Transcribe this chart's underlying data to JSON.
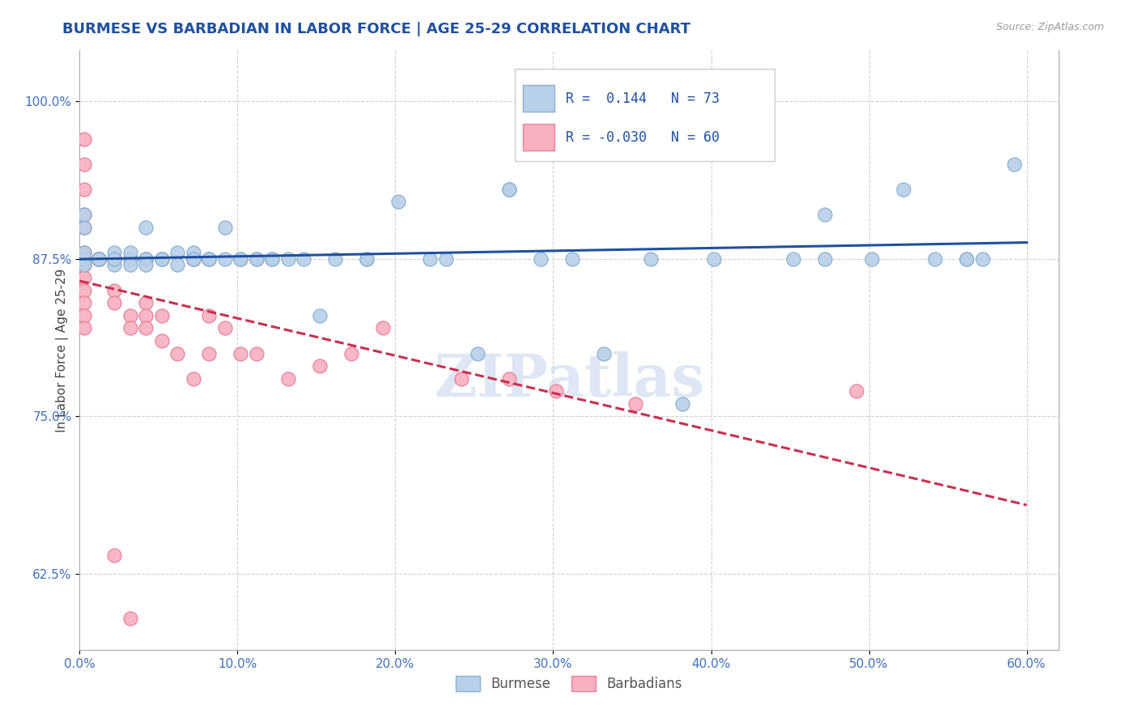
{
  "title": "BURMESE VS BARBADIAN IN LABOR FORCE | AGE 25-29 CORRELATION CHART",
  "source": "Source: ZipAtlas.com",
  "ylabel": "In Labor Force | Age 25-29",
  "xlim": [
    0.0,
    0.62
  ],
  "ylim": [
    0.565,
    1.04
  ],
  "xticks": [
    0.0,
    0.1,
    0.2,
    0.3,
    0.4,
    0.5,
    0.6
  ],
  "xticklabels": [
    "0.0%",
    "10.0%",
    "20.0%",
    "30.0%",
    "40.0%",
    "50.0%",
    "60.0%"
  ],
  "yticks": [
    0.625,
    0.75,
    0.875,
    1.0
  ],
  "yticklabels": [
    "62.5%",
    "75.0%",
    "87.5%",
    "100.0%"
  ],
  "r_burmese": 0.144,
  "n_burmese": 73,
  "r_barbadian": -0.03,
  "n_barbadian": 60,
  "blue_color": "#b8d0e8",
  "blue_edge": "#8ab0d0",
  "pink_color": "#f8b0c0",
  "pink_edge": "#e88098",
  "blue_line_color": "#2050a0",
  "pink_line_color": "#c83050",
  "watermark": "ZIPatlas",
  "burmese_x": [
    0.003,
    0.003,
    0.003,
    0.003,
    0.003,
    0.012,
    0.012,
    0.012,
    0.012,
    0.012,
    0.012,
    0.012,
    0.022,
    0.022,
    0.022,
    0.022,
    0.022,
    0.032,
    0.032,
    0.032,
    0.042,
    0.042,
    0.042,
    0.042,
    0.052,
    0.052,
    0.052,
    0.062,
    0.062,
    0.072,
    0.072,
    0.072,
    0.072,
    0.082,
    0.082,
    0.092,
    0.092,
    0.102,
    0.102,
    0.112,
    0.112,
    0.122,
    0.122,
    0.132,
    0.142,
    0.152,
    0.162,
    0.182,
    0.202,
    0.222,
    0.232,
    0.252,
    0.272,
    0.292,
    0.312,
    0.332,
    0.362,
    0.382,
    0.402,
    0.432,
    0.452,
    0.472,
    0.502,
    0.522,
    0.542,
    0.562,
    0.572,
    0.592,
    0.272,
    0.182,
    0.082,
    0.472,
    0.562
  ],
  "burmese_y": [
    0.875,
    0.9,
    0.88,
    0.87,
    0.91,
    0.875,
    0.875,
    0.875,
    0.875,
    0.875,
    0.875,
    0.875,
    0.875,
    0.875,
    0.88,
    0.87,
    0.875,
    0.875,
    0.88,
    0.87,
    0.9,
    0.875,
    0.875,
    0.87,
    0.875,
    0.875,
    0.875,
    0.88,
    0.87,
    0.875,
    0.88,
    0.875,
    0.875,
    0.875,
    0.875,
    0.9,
    0.875,
    0.875,
    0.875,
    0.875,
    0.875,
    0.875,
    0.875,
    0.875,
    0.875,
    0.83,
    0.875,
    0.875,
    0.92,
    0.875,
    0.875,
    0.8,
    0.93,
    0.875,
    0.875,
    0.8,
    0.875,
    0.76,
    0.875,
    1.0,
    0.875,
    0.875,
    0.875,
    0.93,
    0.875,
    0.875,
    0.875,
    0.95,
    0.93,
    0.875,
    0.875,
    0.91,
    0.875
  ],
  "barbadian_x": [
    0.003,
    0.003,
    0.003,
    0.003,
    0.003,
    0.003,
    0.003,
    0.003,
    0.003,
    0.003,
    0.003,
    0.003,
    0.003,
    0.003,
    0.003,
    0.003,
    0.003,
    0.003,
    0.003,
    0.003,
    0.003,
    0.012,
    0.012,
    0.012,
    0.012,
    0.012,
    0.012,
    0.012,
    0.022,
    0.022,
    0.022,
    0.022,
    0.032,
    0.032,
    0.032,
    0.042,
    0.042,
    0.042,
    0.042,
    0.052,
    0.052,
    0.062,
    0.072,
    0.072,
    0.082,
    0.082,
    0.092,
    0.102,
    0.112,
    0.132,
    0.152,
    0.172,
    0.192,
    0.242,
    0.272,
    0.302,
    0.352,
    0.492,
    0.022,
    0.032
  ],
  "barbadian_y": [
    0.875,
    0.95,
    0.97,
    0.93,
    0.91,
    0.9,
    0.88,
    0.87,
    0.86,
    0.85,
    0.84,
    0.83,
    0.82,
    0.875,
    0.875,
    0.875,
    0.875,
    0.875,
    0.875,
    0.875,
    0.875,
    0.875,
    0.875,
    0.875,
    0.875,
    0.875,
    0.875,
    0.875,
    0.875,
    0.875,
    0.85,
    0.84,
    0.875,
    0.83,
    0.82,
    0.875,
    0.84,
    0.83,
    0.82,
    0.81,
    0.83,
    0.8,
    0.78,
    0.875,
    0.8,
    0.83,
    0.82,
    0.8,
    0.8,
    0.78,
    0.79,
    0.8,
    0.82,
    0.78,
    0.78,
    0.77,
    0.76,
    0.77,
    0.64,
    0.59
  ]
}
